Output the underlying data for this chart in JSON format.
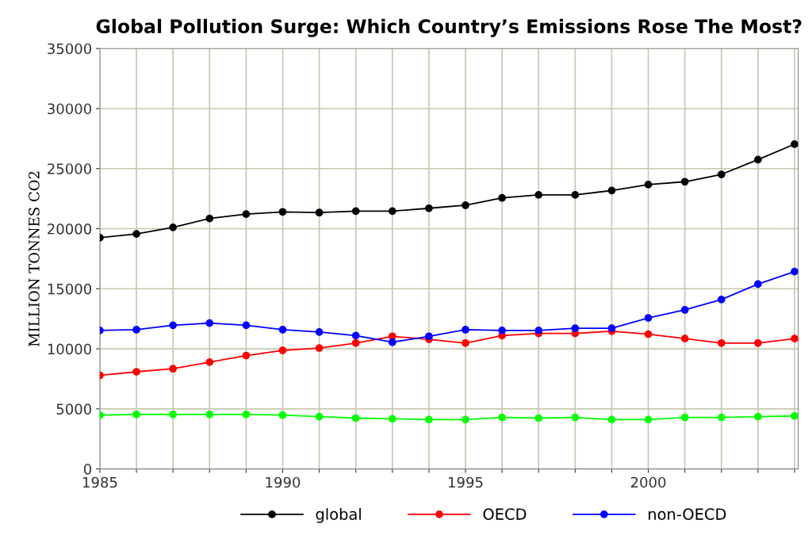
{
  "chart_data": {
    "type": "line",
    "title": "Global Pollution Surge: Which Country’s Emissions Rose The Most?",
    "ylabel": "MILLION TONNES CO2",
    "x": [
      1985,
      1986,
      1987,
      1988,
      1989,
      1990,
      1991,
      1992,
      1993,
      1994,
      1995,
      1996,
      1997,
      1998,
      1999,
      2000,
      2001,
      2002,
      2003,
      2004
    ],
    "series": [
      {
        "name": "global",
        "color": "#000000",
        "values": [
          19250,
          19560,
          20110,
          20850,
          21210,
          21400,
          21340,
          21460,
          21460,
          21700,
          21950,
          22560,
          22810,
          22810,
          23180,
          23670,
          23910,
          24520,
          25750,
          27040
        ]
      },
      {
        "name": "OECD",
        "color": "#ff0000",
        "values": [
          7790,
          8090,
          8340,
          8890,
          9440,
          9870,
          10060,
          10480,
          11040,
          10790,
          10480,
          11100,
          11280,
          11280,
          11470,
          11220,
          10850,
          10480,
          10480,
          10850
        ]
      },
      {
        "name": "non-OECD",
        "color": "#0000ff",
        "values": [
          11530,
          11590,
          11960,
          12140,
          11960,
          11590,
          11400,
          11100,
          10550,
          11040,
          11590,
          11530,
          11530,
          11710,
          11710,
          12570,
          13240,
          14100,
          15390,
          16430
        ]
      },
      {
        "color": "#00ff00",
        "values": [
          4480,
          4540,
          4540,
          4540,
          4540,
          4480,
          4350,
          4230,
          4170,
          4110,
          4110,
          4290,
          4230,
          4290,
          4110,
          4110,
          4290,
          4290,
          4350,
          4410
        ]
      }
    ],
    "xlim": [
      1985,
      2004.1
    ],
    "xticks": [
      1985,
      {
        "value": 1986,
        "label": null
      },
      {
        "value": 1987,
        "label": null
      },
      {
        "value": 1988,
        "label": null
      },
      {
        "value": 1989,
        "label": null
      },
      1990,
      {
        "value": 1991,
        "label": null
      },
      {
        "value": 1992,
        "label": null
      },
      {
        "value": 1993,
        "label": null
      },
      {
        "value": 1994,
        "label": null
      },
      1995,
      {
        "value": 1996,
        "label": null
      },
      {
        "value": 1997,
        "label": null
      },
      {
        "value": 1998,
        "label": null
      },
      {
        "value": 1999,
        "label": null
      },
      2000,
      {
        "value": 2001,
        "label": null
      },
      {
        "value": 2002,
        "label": null
      },
      {
        "value": 2003,
        "label": null
      },
      {
        "value": 2004,
        "label": null
      }
    ],
    "ylim": [
      0,
      35000
    ],
    "yticks": [
      0,
      5000,
      10000,
      15000,
      20000,
      25000,
      30000,
      35000
    ],
    "grid": true,
    "legend": "bottom",
    "marker": "circle",
    "line_style": "solid"
  }
}
